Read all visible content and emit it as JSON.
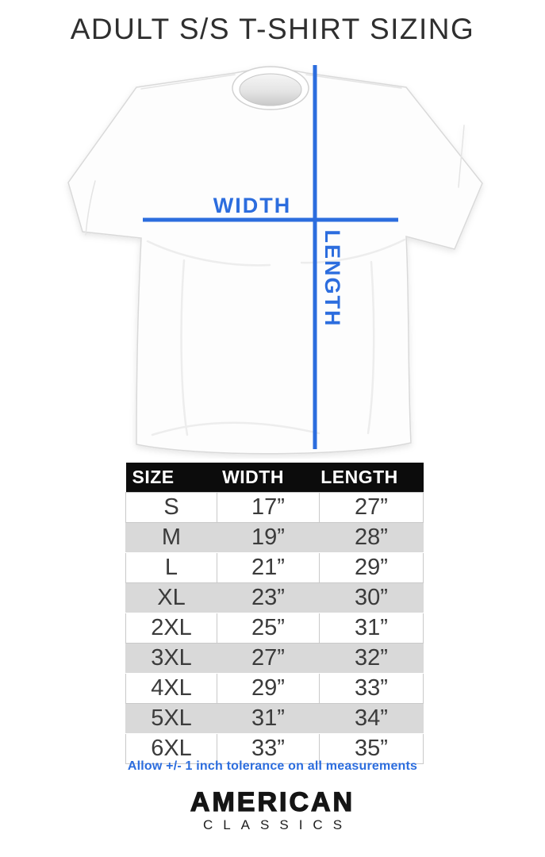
{
  "title": "ADULT S/S T-SHIRT SIZING",
  "diagram": {
    "width_label": "WIDTH",
    "length_label": "LENGTH"
  },
  "chart_data": {
    "type": "table",
    "title": "ADULT S/S T-SHIRT SIZING",
    "columns": [
      "SIZE",
      "WIDTH",
      "LENGTH"
    ],
    "rows": [
      [
        "S",
        "17”",
        "27”"
      ],
      [
        "M",
        "19”",
        "28”"
      ],
      [
        "L",
        "21”",
        "29”"
      ],
      [
        "XL",
        "23”",
        "30”"
      ],
      [
        "2XL",
        "25”",
        "31”"
      ],
      [
        "3XL",
        "27”",
        "32”"
      ],
      [
        "4XL",
        "29”",
        "33”"
      ],
      [
        "5XL",
        "31”",
        "34”"
      ],
      [
        "6XL",
        "33”",
        "35”"
      ]
    ],
    "note": "Allow +/- 1 inch tolerance on all measurements",
    "layout_hints": {
      "stripe_pattern": "even rows white, odd rows gray",
      "header": "black bar, white text"
    }
  },
  "footer": {
    "brand_line1": "AMERICAN",
    "brand_line2": "CLASSICS"
  },
  "colors": {
    "accent_blue": "#2c6dde",
    "table_header_bg": "#0c0c0c",
    "row_alt_gray": "#d9d9d9",
    "text_dark": "#2f2f2f"
  }
}
